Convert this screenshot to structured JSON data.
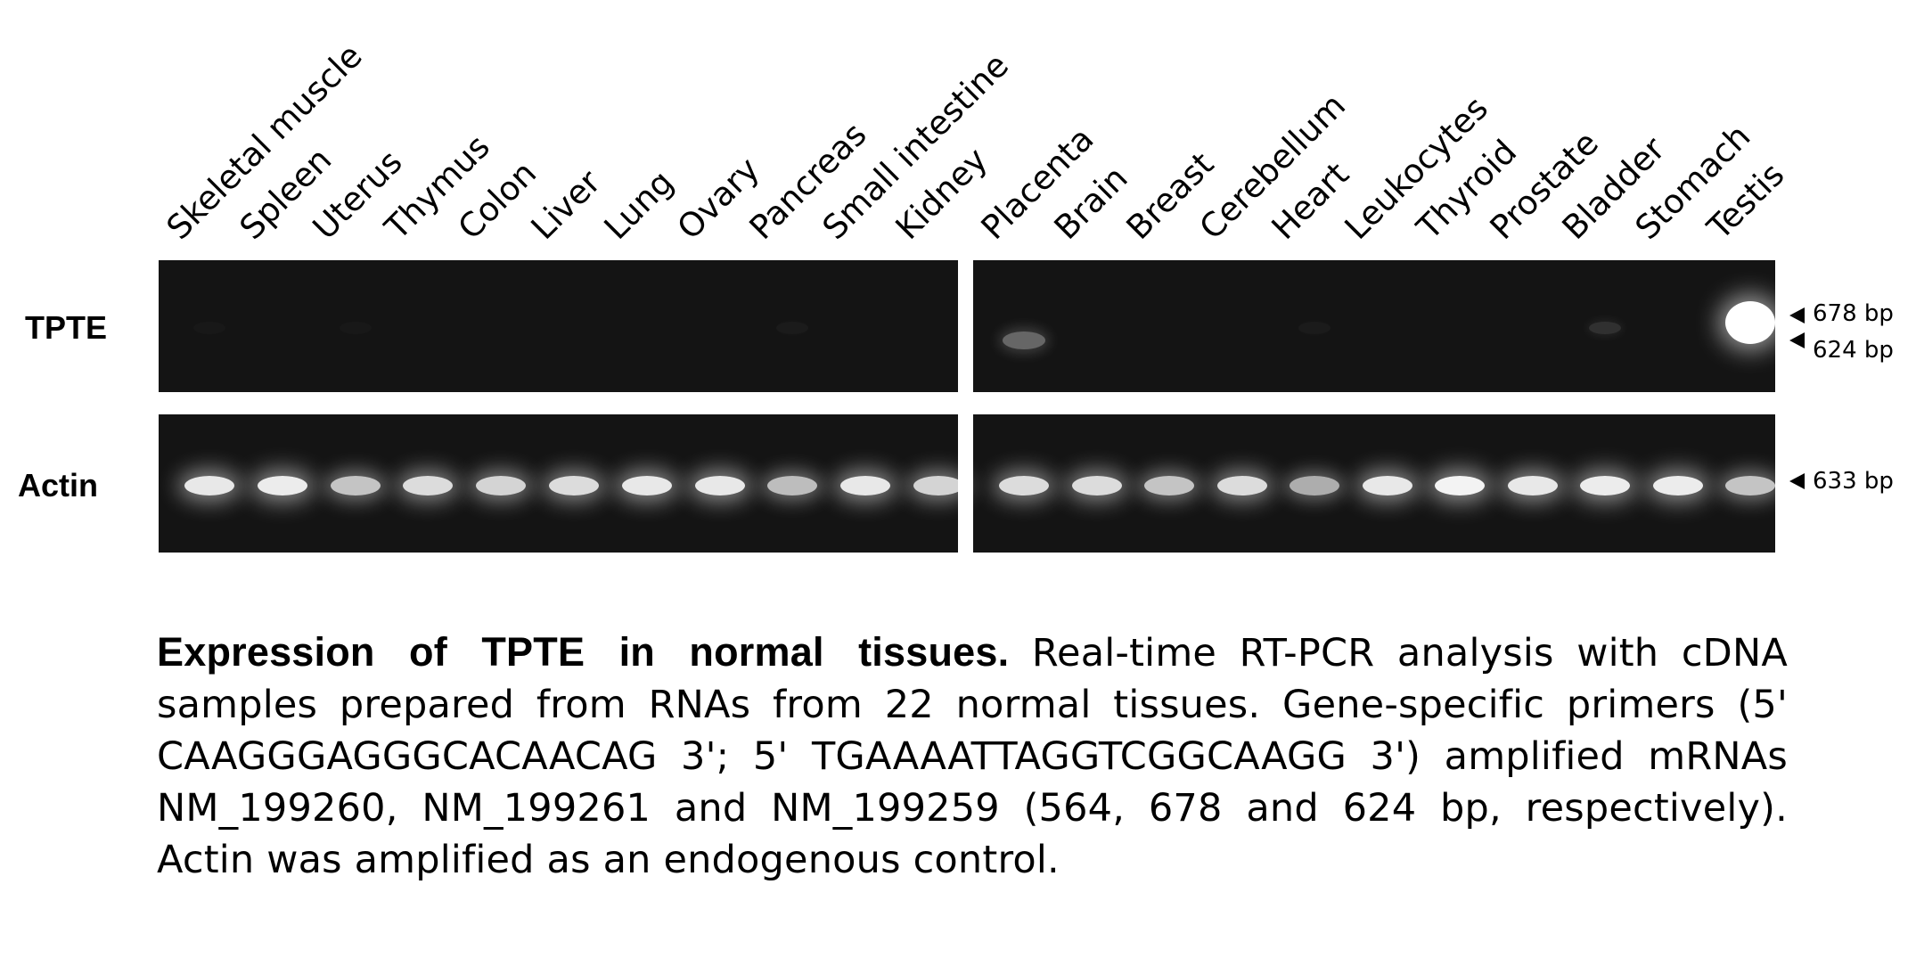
{
  "figure": {
    "lanes": [
      "Skeletal muscle",
      "Spleen",
      "Uterus",
      "Thymus",
      "Colon",
      "Liver",
      "Lung",
      "Ovary",
      "Pancreas",
      "Small intestine",
      "Kidney",
      "Placenta",
      "Brain",
      "Breast",
      "Cerebellum",
      "Heart",
      "Leukocytes",
      "Thyroid",
      "Prostate",
      "Bladder",
      "Stomach",
      "Testis"
    ],
    "rows": [
      {
        "label": "TPTE",
        "markers": [
          "678 bp",
          "624 bp"
        ],
        "band_intensity": [
          0.02,
          0,
          0.02,
          0,
          0,
          0,
          0,
          0,
          0.03,
          0,
          0,
          0.35,
          0,
          0,
          0,
          0.03,
          0,
          0,
          0,
          0.12,
          0,
          1.0
        ]
      },
      {
        "label": "Actin",
        "markers": [
          "633 bp"
        ],
        "band_intensity": [
          0.9,
          0.92,
          0.75,
          0.85,
          0.82,
          0.85,
          0.9,
          0.9,
          0.72,
          0.9,
          0.82,
          0.85,
          0.85,
          0.75,
          0.85,
          0.65,
          0.9,
          0.95,
          0.9,
          0.92,
          0.92,
          0.75
        ]
      }
    ],
    "gel_background": "#141414",
    "band_color": "#ffffff"
  },
  "caption": {
    "lead": "Expression of TPTE   in normal tissues.",
    "body": "Real-time RT-PCR analysis with cDNA samples prepared from RNAs from 22 normal tissues. Gene-specific primers (5' CAAGGGAGGGCACAACAG 3'; 5' TGAAAATTAGGTCGGCAAGG 3') amplified mRNAs NM_199260, NM_199261 and NM_199259 (564, 678 and 624 bp, respectively). Actin was amplified as an endogenous control."
  }
}
